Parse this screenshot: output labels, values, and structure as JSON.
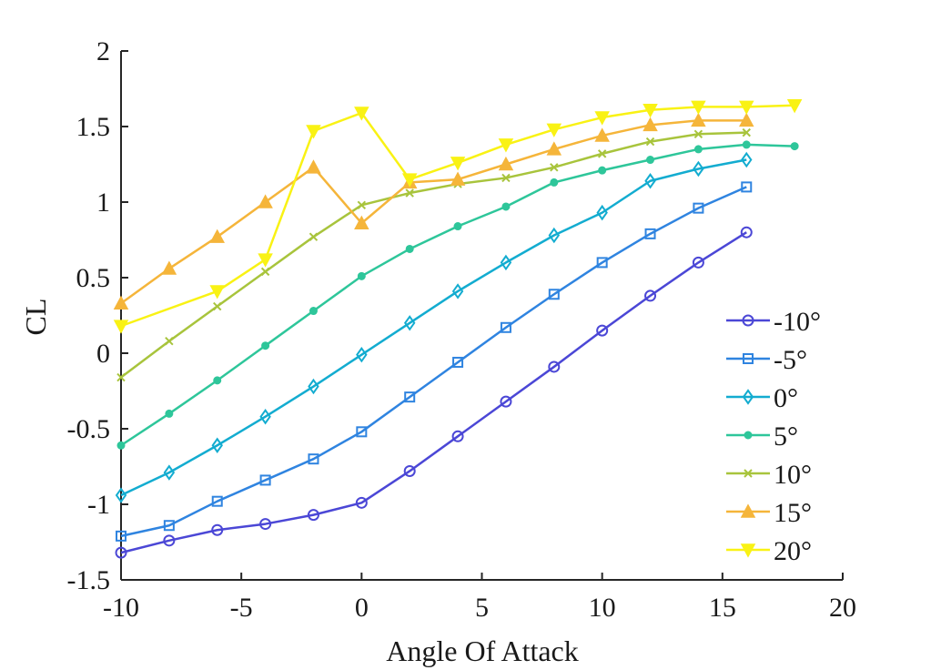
{
  "chart_data": {
    "type": "line",
    "xlabel": "Angle Of Attack",
    "ylabel": "CL",
    "xlim": [
      -10,
      20
    ],
    "ylim": [
      -1.5,
      2
    ],
    "xticks": [
      -10,
      -5,
      0,
      5,
      10,
      15,
      20
    ],
    "yticks": [
      -1.5,
      -1,
      -0.5,
      0,
      0.5,
      1,
      1.5,
      2
    ],
    "xtick_labels": [
      "-10",
      "-5",
      "0",
      "5",
      "10",
      "15",
      "20"
    ],
    "ytick_labels": [
      "-1.5",
      "-1",
      "-0.5",
      "0",
      "0.5",
      "1",
      "1.5",
      "2"
    ],
    "grid": false,
    "legend_position": "right, lower half",
    "series": [
      {
        "name": "-10°",
        "color": "#4b47d6",
        "marker": "circle",
        "x": [
          -10,
          -8,
          -6,
          -4,
          -2,
          0,
          2,
          4,
          6,
          8,
          10,
          12,
          14,
          16
        ],
        "y": [
          -1.32,
          -1.24,
          -1.17,
          -1.13,
          -1.07,
          -0.99,
          -0.78,
          -0.55,
          -0.32,
          -0.09,
          0.15,
          0.38,
          0.6,
          0.8
        ]
      },
      {
        "name": "-5°",
        "color": "#2f84e0",
        "marker": "square",
        "x": [
          -10,
          -8,
          -6,
          -4,
          -2,
          0,
          2,
          4,
          6,
          8,
          10,
          12,
          14,
          16
        ],
        "y": [
          -1.21,
          -1.14,
          -0.98,
          -0.84,
          -0.7,
          -0.52,
          -0.29,
          -0.06,
          0.17,
          0.39,
          0.6,
          0.79,
          0.96,
          1.1
        ]
      },
      {
        "name": "0°",
        "color": "#13acd0",
        "marker": "diamond",
        "x": [
          -10,
          -8,
          -6,
          -4,
          -2,
          0,
          2,
          4,
          6,
          8,
          10,
          12,
          14,
          16
        ],
        "y": [
          -0.94,
          -0.79,
          -0.61,
          -0.42,
          -0.22,
          -0.01,
          0.2,
          0.41,
          0.6,
          0.78,
          0.93,
          1.14,
          1.22,
          1.28
        ]
      },
      {
        "name": "5°",
        "color": "#2ec69a",
        "marker": "point",
        "x": [
          -10,
          -8,
          -6,
          -4,
          -2,
          0,
          2,
          4,
          6,
          8,
          10,
          12,
          14,
          16,
          18
        ],
        "y": [
          -0.61,
          -0.4,
          -0.18,
          0.05,
          0.28,
          0.51,
          0.69,
          0.84,
          0.97,
          1.13,
          1.21,
          1.28,
          1.35,
          1.38,
          1.37
        ]
      },
      {
        "name": "10°",
        "color": "#a8c43c",
        "marker": "x",
        "x": [
          -10,
          -8,
          -6,
          -4,
          -2,
          0,
          2,
          4,
          6,
          8,
          10,
          12,
          14,
          16
        ],
        "y": [
          -0.16,
          0.08,
          0.31,
          0.54,
          0.77,
          0.98,
          1.06,
          1.12,
          1.16,
          1.23,
          1.32,
          1.4,
          1.45,
          1.46
        ]
      },
      {
        "name": "15°",
        "color": "#f5b53a",
        "marker": "triangle-up",
        "x": [
          -10,
          -8,
          -6,
          -4,
          -2,
          0,
          2,
          4,
          6,
          8,
          10,
          12,
          14,
          16
        ],
        "y": [
          0.33,
          0.56,
          0.77,
          1.0,
          1.23,
          0.86,
          1.13,
          1.15,
          1.25,
          1.35,
          1.44,
          1.51,
          1.54,
          1.54
        ]
      },
      {
        "name": "20°",
        "color": "#f9f214",
        "marker": "triangle-down",
        "x": [
          -10,
          -6,
          -4,
          -2,
          0,
          2,
          4,
          6,
          8,
          10,
          12,
          14,
          16,
          18
        ],
        "y": [
          0.18,
          0.41,
          0.62,
          1.47,
          1.59,
          1.15,
          1.26,
          1.38,
          1.48,
          1.56,
          1.61,
          1.63,
          1.63,
          1.64
        ]
      }
    ]
  }
}
